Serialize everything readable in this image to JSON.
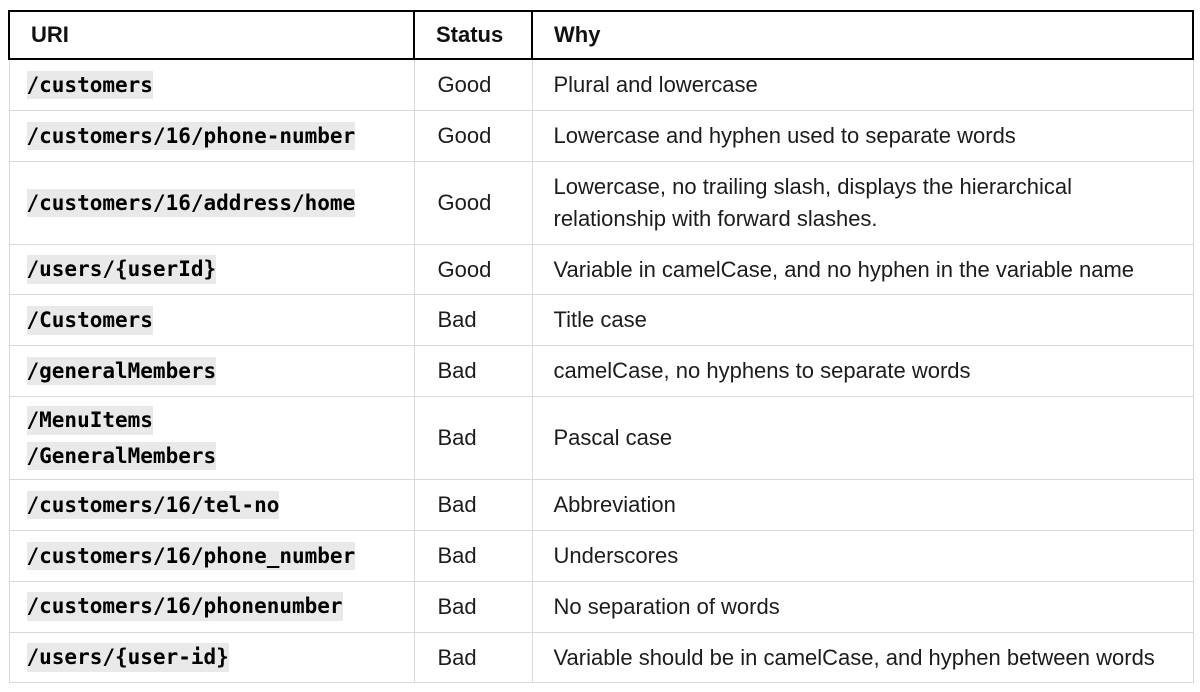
{
  "table": {
    "headers": {
      "uri": "URI",
      "status": "Status",
      "why": "Why"
    },
    "rows": [
      {
        "uris": [
          "/customers"
        ],
        "status": "Good",
        "why": "Plural and lowercase"
      },
      {
        "uris": [
          "/customers/16/phone-number"
        ],
        "status": "Good",
        "why": "Lowercase and hyphen used to separate words"
      },
      {
        "uris": [
          "/customers/16/address/home"
        ],
        "status": "Good",
        "why": "Lowercase, no trailing slash, displays the hierarchical relationship with forward slashes."
      },
      {
        "uris": [
          "/users/{userId}"
        ],
        "status": "Good",
        "why": "Variable in camelCase, and no hyphen in the variable name"
      },
      {
        "uris": [
          "/Customers"
        ],
        "status": "Bad",
        "why": "Title case"
      },
      {
        "uris": [
          "/generalMembers"
        ],
        "status": "Bad",
        "why": "camelCase, no hyphens to separate words"
      },
      {
        "uris": [
          "/MenuItems",
          "/GeneralMembers"
        ],
        "status": "Bad",
        "why": "Pascal case"
      },
      {
        "uris": [
          "/customers/16/tel-no"
        ],
        "status": "Bad",
        "why": "Abbreviation"
      },
      {
        "uris": [
          "/customers/16/phone_number"
        ],
        "status": "Bad",
        "why": "Underscores"
      },
      {
        "uris": [
          "/customers/16/phonenumber"
        ],
        "status": "Bad",
        "why": "No separation of words"
      },
      {
        "uris": [
          "/users/{user-id}"
        ],
        "status": "Bad",
        "why": "Variable should be in camelCase, and hyphen between words"
      }
    ]
  },
  "colors": {
    "header_border": "#000000",
    "body_border": "#d9d9d9",
    "code_background": "#e9e9e9",
    "text": "#1c1c1c"
  }
}
